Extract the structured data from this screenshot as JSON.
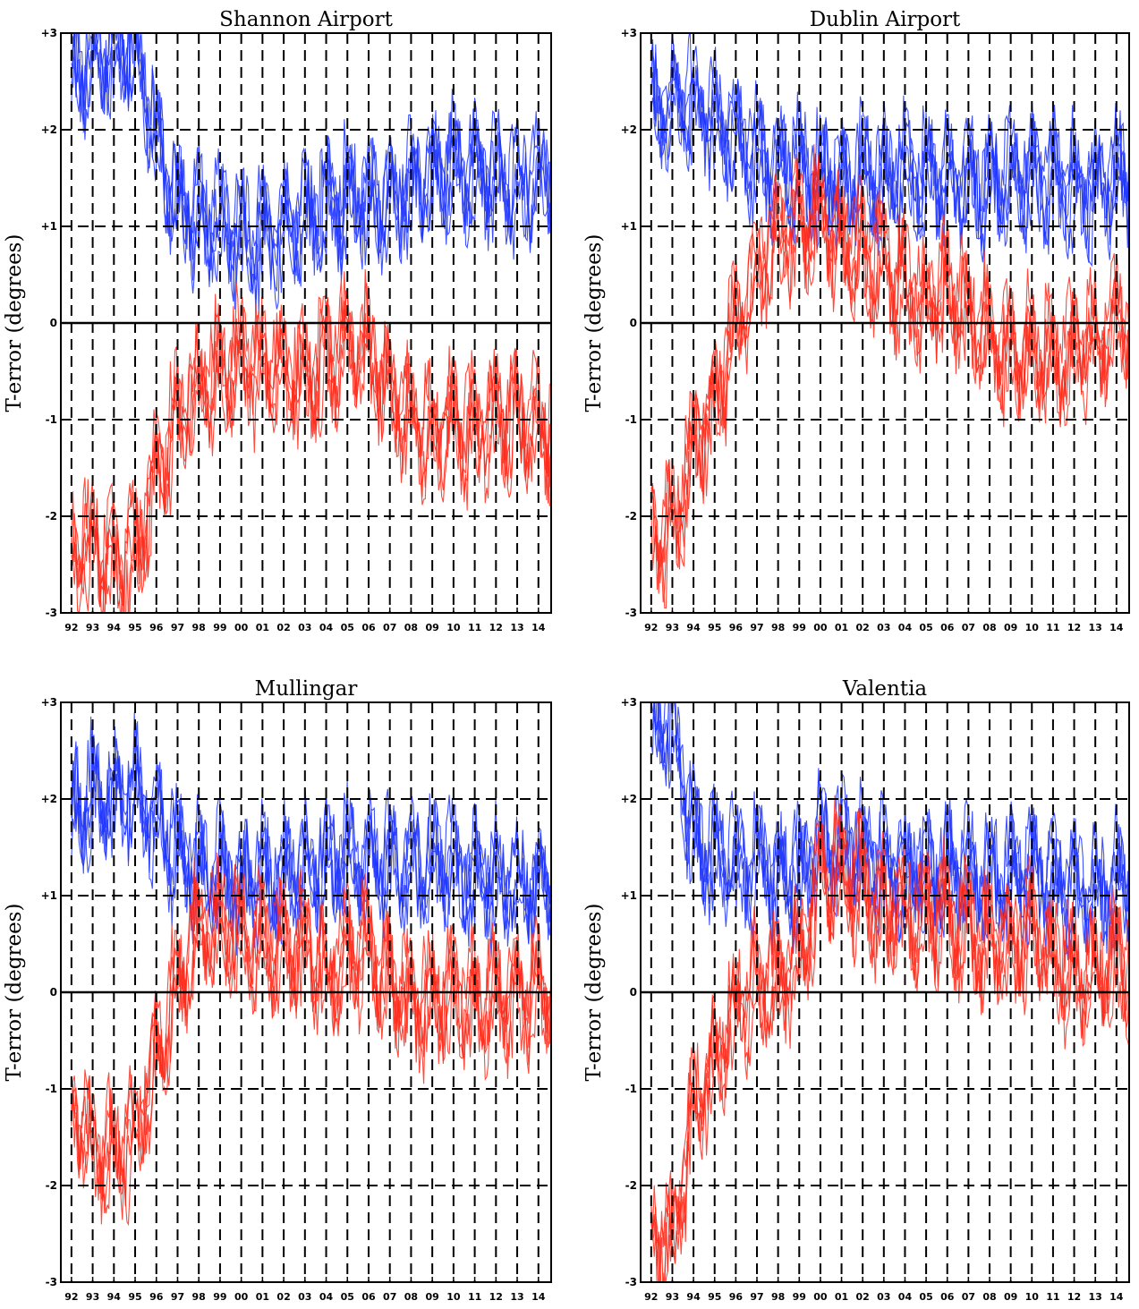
{
  "figure": {
    "colors": {
      "warm_series": "#ff2a1a",
      "cool_series": "#1f35ff",
      "grid": "#000000"
    }
  },
  "chart_data": [
    {
      "type": "line",
      "title": "Shannon Airport",
      "ylabel": "T-error (degrees)",
      "xlabel": "",
      "ylim": [
        -3,
        3
      ],
      "y_ticks": [
        "+3",
        "+2",
        "+1",
        "0",
        "-1",
        "-2",
        "-3"
      ],
      "x_ticks": [
        "92",
        "93",
        "94",
        "95",
        "96",
        "97",
        "98",
        "99",
        "00",
        "01",
        "02",
        "03",
        "04",
        "05",
        "06",
        "07",
        "08",
        "09",
        "10",
        "11",
        "12",
        "13",
        "14"
      ],
      "grid": "dashed",
      "series": [
        {
          "color": "#1f35ff",
          "x": [
            1992,
            1993,
            1994,
            1995,
            1996,
            1997,
            1998,
            1999,
            2000,
            2001,
            2002,
            2003,
            2004,
            2005,
            2006,
            2007,
            2008,
            2009,
            2010,
            2011,
            2012,
            2013,
            2014
          ],
          "values": [
            2.6,
            2.7,
            2.8,
            2.9,
            1.9,
            1.2,
            1.1,
            1.0,
            0.9,
            0.9,
            1.0,
            1.1,
            1.2,
            1.3,
            1.3,
            1.2,
            1.4,
            1.5,
            1.6,
            1.5,
            1.5,
            1.4,
            1.5
          ]
        },
        {
          "color": "#ff2a1a",
          "x": [
            1992,
            1993,
            1994,
            1995,
            1996,
            1997,
            1998,
            1999,
            2000,
            2001,
            2002,
            2003,
            2004,
            2005,
            2006,
            2007,
            2008,
            2009,
            2010,
            2011,
            2012,
            2013,
            2014
          ],
          "values": [
            -2.4,
            -2.3,
            -2.5,
            -2.4,
            -1.5,
            -1.0,
            -0.7,
            -0.5,
            -0.4,
            -0.5,
            -0.5,
            -0.6,
            -0.4,
            -0.2,
            -0.3,
            -0.6,
            -1.0,
            -1.2,
            -1.0,
            -1.1,
            -1.0,
            -1.0,
            -1.1
          ]
        }
      ]
    },
    {
      "type": "line",
      "title": "Dublin Airport",
      "ylabel": "T-error (degrees)",
      "xlabel": "",
      "ylim": [
        -3,
        3
      ],
      "y_ticks": [
        "+3",
        "+2",
        "+1",
        "0",
        "-1",
        "-2",
        "-3"
      ],
      "x_ticks": [
        "92",
        "93",
        "94",
        "95",
        "96",
        "97",
        "98",
        "99",
        "00",
        "01",
        "02",
        "03",
        "04",
        "05",
        "06",
        "07",
        "08",
        "09",
        "10",
        "11",
        "12",
        "13",
        "14"
      ],
      "grid": "dashed",
      "series": [
        {
          "color": "#1f35ff",
          "x": [
            1992,
            1993,
            1994,
            1995,
            1996,
            1997,
            1998,
            1999,
            2000,
            2001,
            2002,
            2003,
            2004,
            2005,
            2006,
            2007,
            2008,
            2009,
            2010,
            2011,
            2012,
            2013,
            2014
          ],
          "values": [
            2.2,
            2.3,
            2.3,
            2.1,
            1.9,
            1.7,
            1.6,
            1.6,
            1.5,
            1.5,
            1.5,
            1.5,
            1.5,
            1.5,
            1.5,
            1.5,
            1.4,
            1.5,
            1.5,
            1.5,
            1.4,
            1.4,
            1.5
          ]
        },
        {
          "color": "#ff2a1a",
          "x": [
            1992,
            1993,
            1994,
            1995,
            1996,
            1997,
            1998,
            1999,
            2000,
            2001,
            2002,
            2003,
            2004,
            2005,
            2006,
            2007,
            2008,
            2009,
            2010,
            2011,
            2012,
            2013,
            2014
          ],
          "values": [
            -2.2,
            -2.2,
            -1.3,
            -0.8,
            -0.1,
            0.5,
            0.9,
            1.0,
            1.1,
            0.8,
            0.7,
            0.6,
            0.4,
            0.2,
            0.3,
            0.1,
            -0.2,
            -0.3,
            -0.3,
            -0.4,
            -0.3,
            -0.2,
            0.0
          ]
        }
      ]
    },
    {
      "type": "line",
      "title": "Mullingar",
      "ylabel": "T-error (degrees)",
      "xlabel": "",
      "ylim": [
        -3,
        3
      ],
      "y_ticks": [
        "+3",
        "+2",
        "+1",
        "0",
        "-1",
        "-2",
        "-3"
      ],
      "x_ticks": [
        "92",
        "93",
        "94",
        "95",
        "96",
        "97",
        "98",
        "99",
        "00",
        "01",
        "02",
        "03",
        "04",
        "05",
        "06",
        "07",
        "08",
        "09",
        "10",
        "11",
        "12",
        "13",
        "14"
      ],
      "grid": "dashed",
      "series": [
        {
          "color": "#1f35ff",
          "x": [
            1992,
            1993,
            1994,
            1995,
            1996,
            1997,
            1998,
            1999,
            2000,
            2001,
            2002,
            2003,
            2004,
            2005,
            2006,
            2007,
            2008,
            2009,
            2010,
            2011,
            2012,
            2013,
            2014
          ],
          "values": [
            1.9,
            2.0,
            2.0,
            2.1,
            1.8,
            1.4,
            1.3,
            1.2,
            1.2,
            1.2,
            1.2,
            1.3,
            1.3,
            1.4,
            1.4,
            1.4,
            1.3,
            1.3,
            1.3,
            1.2,
            1.2,
            1.1,
            1.1
          ]
        },
        {
          "color": "#ff2a1a",
          "x": [
            1992,
            1993,
            1994,
            1995,
            1996,
            1997,
            1998,
            1999,
            2000,
            2001,
            2002,
            2003,
            2004,
            2005,
            2006,
            2007,
            2008,
            2009,
            2010,
            2011,
            2012,
            2013,
            2014
          ],
          "values": [
            -1.2,
            -1.6,
            -1.7,
            -1.5,
            -0.7,
            0.1,
            0.6,
            0.7,
            0.6,
            0.5,
            0.5,
            0.4,
            0.2,
            0.4,
            0.4,
            0.1,
            -0.1,
            -0.1,
            0.0,
            -0.1,
            -0.1,
            0.0,
            0.0
          ]
        }
      ]
    },
    {
      "type": "line",
      "title": "Valentia",
      "ylabel": "T-error (degrees)",
      "xlabel": "",
      "ylim": [
        -3,
        3
      ],
      "y_ticks": [
        "+3",
        "+2",
        "+1",
        "0",
        "-1",
        "-2",
        "-3"
      ],
      "x_ticks": [
        "92",
        "93",
        "94",
        "95",
        "96",
        "97",
        "98",
        "99",
        "00",
        "01",
        "02",
        "03",
        "04",
        "05",
        "06",
        "07",
        "08",
        "09",
        "10",
        "11",
        "12",
        "13",
        "14"
      ],
      "grid": "dashed",
      "series": [
        {
          "color": "#1f35ff",
          "x": [
            1992,
            1993,
            1994,
            1995,
            1996,
            1997,
            1998,
            1999,
            2000,
            2001,
            2002,
            2003,
            2004,
            2005,
            2006,
            2007,
            2008,
            2009,
            2010,
            2011,
            2012,
            2013,
            2014
          ],
          "values": [
            2.8,
            2.9,
            1.6,
            1.4,
            1.3,
            1.3,
            1.2,
            1.2,
            1.5,
            1.5,
            1.4,
            1.3,
            1.3,
            1.2,
            1.3,
            1.2,
            1.2,
            1.2,
            1.3,
            1.1,
            1.1,
            1.0,
            1.1
          ]
        },
        {
          "color": "#ff2a1a",
          "x": [
            1992,
            1993,
            1994,
            1995,
            1996,
            1997,
            1998,
            1999,
            2000,
            2001,
            2002,
            2003,
            2004,
            2005,
            2006,
            2007,
            2008,
            2009,
            2010,
            2011,
            2012,
            2013,
            2014
          ],
          "values": [
            -2.5,
            -2.6,
            -1.2,
            -0.7,
            -0.2,
            0.1,
            0.1,
            0.3,
            1.2,
            1.2,
            1.1,
            0.9,
            0.8,
            0.8,
            0.8,
            0.6,
            0.5,
            0.4,
            0.7,
            0.3,
            0.2,
            0.2,
            0.3
          ]
        }
      ]
    }
  ]
}
